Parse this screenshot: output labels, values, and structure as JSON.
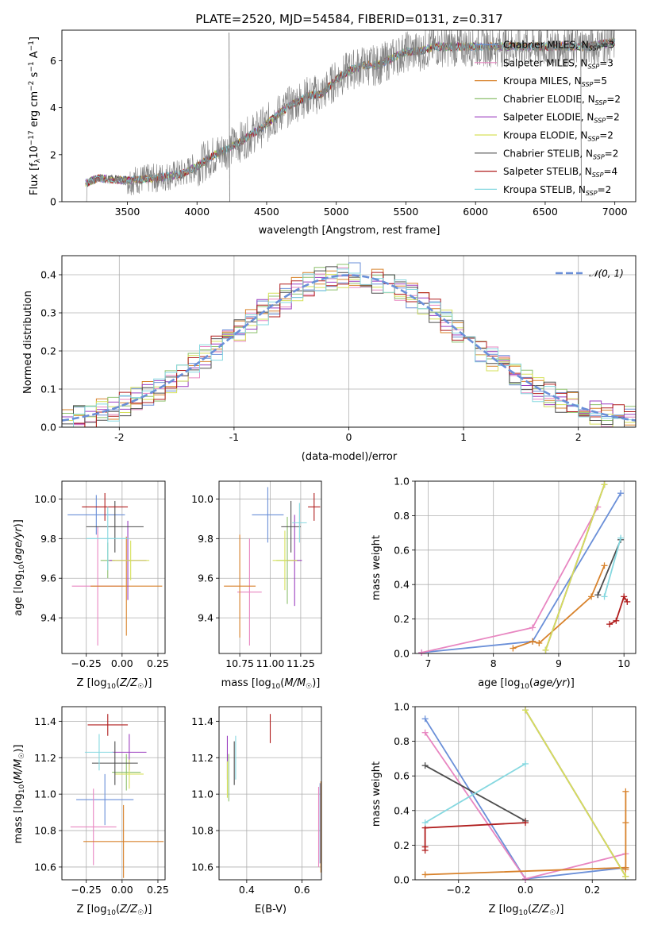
{
  "figure_title": "PLATE=2520, MJD=54584, FIBERID=0131, z=0.317",
  "colors": {
    "Chabrier MILES": "#6a8fd8",
    "Salpeter MILES": "#e886c1",
    "Kroupa MILES": "#d8822b",
    "Chabrier ELODIE": "#8dc06d",
    "Salpeter ELODIE": "#9b3fbf",
    "Kroupa ELODIE": "#d6e05a",
    "Chabrier STELIB": "#4d4d4d",
    "Salpeter STELIB": "#b01d1d",
    "Kroupa STELIB": "#86d8e0",
    "data": "#808080",
    "normal": "#6a8fd8",
    "grid": "#b0b0b0"
  },
  "chart_data": [
    {
      "id": "spectrum",
      "type": "line",
      "title": "PLATE=2520, MJD=54584, FIBERID=0131, z=0.317",
      "xlabel": "wavelength [Angstrom, rest frame]",
      "ylabel": "Flux [f_λ 10^-17 erg cm^-2 s^-1 A^-1]",
      "xlim": [
        3030,
        7150
      ],
      "ylim": [
        0,
        7.3
      ],
      "xticks": [
        3500,
        4000,
        4500,
        5000,
        5500,
        6000,
        6500,
        7000
      ],
      "yticks": [
        0,
        2,
        4,
        6
      ],
      "grid": false,
      "legend_position": "top-right",
      "continuum_points": [
        [
          3200,
          0.8
        ],
        [
          3300,
          1.0
        ],
        [
          3500,
          0.9
        ],
        [
          3700,
          1.0
        ],
        [
          3900,
          1.2
        ],
        [
          4000,
          1.5
        ],
        [
          4100,
          1.9
        ],
        [
          4200,
          2.2
        ],
        [
          4300,
          2.5
        ],
        [
          4400,
          2.9
        ],
        [
          4500,
          3.3
        ],
        [
          4600,
          3.8
        ],
        [
          4700,
          4.2
        ],
        [
          4800,
          4.5
        ],
        [
          4900,
          4.6
        ],
        [
          5000,
          5.2
        ],
        [
          5100,
          5.6
        ],
        [
          5200,
          5.8
        ],
        [
          5300,
          5.8
        ],
        [
          5400,
          6.1
        ],
        [
          5500,
          6.4
        ],
        [
          5600,
          6.4
        ],
        [
          5700,
          6.6
        ],
        [
          5800,
          6.6
        ],
        [
          5900,
          6.6
        ],
        [
          6000,
          6.6
        ],
        [
          6200,
          6.6
        ],
        [
          6400,
          6.6
        ],
        [
          6600,
          6.6
        ],
        [
          6800,
          6.6
        ],
        [
          7000,
          6.8
        ]
      ],
      "spikes": [
        [
          4230,
          7.2
        ],
        [
          4235,
          0
        ],
        [
          6760,
          0
        ],
        [
          6755,
          7.2
        ]
      ],
      "series": [
        {
          "name": "Chabrier MILES, N_SSP=3"
        },
        {
          "name": "Salpeter MILES, N_SSP=3"
        },
        {
          "name": "Kroupa MILES, N_SSP=5"
        },
        {
          "name": "Chabrier ELODIE, N_SSP=2"
        },
        {
          "name": "Salpeter ELODIE, N_SSP=2"
        },
        {
          "name": "Kroupa ELODIE, N_SSP=2"
        },
        {
          "name": "Chabrier STELIB, N_SSP=2"
        },
        {
          "name": "Salpeter STELIB, N_SSP=4"
        },
        {
          "name": "Kroupa STELIB, N_SSP=2"
        }
      ]
    },
    {
      "id": "residuals",
      "type": "line",
      "xlabel": "(data-model)/error",
      "ylabel": "Normed distribution",
      "xlim": [
        -2.5,
        2.5
      ],
      "ylim": [
        0,
        0.45
      ],
      "xticks": [
        -2,
        -1,
        0,
        1,
        2
      ],
      "yticks": [
        0.0,
        0.1,
        0.2,
        0.3,
        0.4
      ],
      "grid": true,
      "legend_position": "top-right",
      "normal_label": "N(0,1)",
      "bin_width": 0.1
    },
    {
      "id": "age_vs_Z",
      "type": "scatter",
      "xlabel": "Z [log10(Z/Z☉)]",
      "ylabel": "age [log10(age/yr)]",
      "xlim": [
        -0.42,
        0.3
      ],
      "ylim": [
        9.22,
        10.09
      ],
      "xticks": [
        -0.25,
        0.0,
        0.25
      ],
      "xticklabels": [
        "−0.25",
        "0.00",
        "0.25"
      ],
      "yticks": [
        9.4,
        9.6,
        9.8,
        10.0
      ],
      "grid": true,
      "points": [
        {
          "series": "Chabrier MILES",
          "x": -0.18,
          "xerr": 0.2,
          "y": 9.92,
          "yerr": 0.1
        },
        {
          "series": "Salpeter MILES",
          "x": -0.17,
          "xerr": 0.18,
          "y": 9.56,
          "yerr": 0.3
        },
        {
          "series": "Kroupa MILES",
          "x": 0.03,
          "xerr": 0.25,
          "y": 9.56,
          "yerr": 0.25
        },
        {
          "series": "Chabrier ELODIE",
          "x": -0.1,
          "xerr": 0.05,
          "y": 9.69,
          "yerr": 0.09
        },
        {
          "series": "Salpeter ELODIE",
          "x": 0.04,
          "xerr": 0.13,
          "y": 9.69,
          "yerr": 0.2
        },
        {
          "series": "Kroupa ELODIE",
          "x": 0.06,
          "xerr": 0.13,
          "y": 9.69,
          "yerr": 0.1
        },
        {
          "series": "Chabrier STELIB",
          "x": -0.05,
          "xerr": 0.2,
          "y": 9.86,
          "yerr": 0.13
        },
        {
          "series": "Salpeter STELIB",
          "x": -0.12,
          "xerr": 0.16,
          "y": 9.96,
          "yerr": 0.07
        },
        {
          "series": "Kroupa STELIB",
          "x": -0.1,
          "xerr": 0.15,
          "y": 9.8,
          "yerr": 0.16
        }
      ]
    },
    {
      "id": "age_vs_mass",
      "type": "scatter",
      "xlabel": "mass [log10(M/M☉)]",
      "xlim": [
        10.58,
        11.42
      ],
      "ylim": [
        9.22,
        10.09
      ],
      "xticks": [
        10.75,
        11.0,
        11.25
      ],
      "xticklabels": [
        "10.75",
        "11.00",
        "11.25"
      ],
      "yticks": [
        9.4,
        9.6,
        9.8,
        10.0
      ],
      "grid": true,
      "points": [
        {
          "series": "Chabrier MILES",
          "x": 10.98,
          "xerr": 0.13,
          "y": 9.92,
          "yerr": 0.14
        },
        {
          "series": "Salpeter MILES",
          "x": 10.83,
          "xerr": 0.1,
          "y": 9.53,
          "yerr": 0.27
        },
        {
          "series": "Kroupa MILES",
          "x": 10.75,
          "xerr": 0.13,
          "y": 9.56,
          "yerr": 0.26
        },
        {
          "series": "Chabrier ELODIE",
          "x": 11.14,
          "xerr": 0.09,
          "y": 9.69,
          "yerr": 0.22
        },
        {
          "series": "Salpeter ELODIE",
          "x": 11.2,
          "xerr": 0.06,
          "y": 9.69,
          "yerr": 0.23
        },
        {
          "series": "Kroupa ELODIE",
          "x": 11.12,
          "xerr": 0.1,
          "y": 9.69,
          "yerr": 0.15
        },
        {
          "series": "Chabrier STELIB",
          "x": 11.17,
          "xerr": 0.08,
          "y": 9.86,
          "yerr": 0.13
        },
        {
          "series": "Salpeter STELIB",
          "x": 11.36,
          "xerr": 0.05,
          "y": 9.96,
          "yerr": 0.07
        },
        {
          "series": "Kroupa STELIB",
          "x": 11.24,
          "xerr": 0.06,
          "y": 9.88,
          "yerr": 0.1
        }
      ]
    },
    {
      "id": "mw_vs_age",
      "type": "line",
      "xlabel": "age [log10(age/yr)]",
      "ylabel": "mass weight",
      "xlim": [
        6.8,
        10.18
      ],
      "ylim": [
        0,
        1.0
      ],
      "xticks": [
        7,
        8,
        9,
        10
      ],
      "yticks": [
        0.0,
        0.2,
        0.4,
        0.6,
        0.8,
        1.0
      ],
      "grid": true,
      "series": [
        {
          "series": "Chabrier MILES",
          "x": [
            6.9,
            8.6,
            9.95
          ],
          "y": [
            0.005,
            0.07,
            0.93
          ]
        },
        {
          "series": "Salpeter MILES",
          "x": [
            6.9,
            8.6,
            9.6
          ],
          "y": [
            0.005,
            0.15,
            0.85
          ]
        },
        {
          "series": "Kroupa MILES",
          "x": [
            8.3,
            8.6,
            8.7,
            9.5,
            9.7
          ],
          "y": [
            0.03,
            0.07,
            0.06,
            0.33,
            0.51
          ]
        },
        {
          "series": "Chabrier ELODIE",
          "x": [
            8.8,
            9.7
          ],
          "y": [
            0.02,
            0.98
          ]
        },
        {
          "series": "Salpeter ELODIE",
          "x": [
            8.8,
            9.7
          ],
          "y": [
            0.02,
            0.98
          ]
        },
        {
          "series": "Kroupa ELODIE",
          "x": [
            8.8,
            9.7
          ],
          "y": [
            0.02,
            0.98
          ]
        },
        {
          "series": "Chabrier STELIB",
          "x": [
            9.6,
            9.95
          ],
          "y": [
            0.34,
            0.66
          ]
        },
        {
          "series": "Salpeter STELIB",
          "x": [
            9.78,
            9.88,
            10.0,
            10.05
          ],
          "y": [
            0.17,
            0.19,
            0.33,
            0.3
          ]
        },
        {
          "series": "Kroupa STELIB",
          "x": [
            9.7,
            9.95
          ],
          "y": [
            0.33,
            0.67
          ]
        }
      ]
    },
    {
      "id": "mass_vs_Z",
      "type": "scatter",
      "xlabel": "Z [log10(Z/Z☉)]",
      "ylabel": "mass [log10(M/M☉)]",
      "xlim": [
        -0.42,
        0.3
      ],
      "ylim": [
        10.53,
        11.48
      ],
      "xticks": [
        -0.25,
        0.0,
        0.25
      ],
      "xticklabels": [
        "−0.25",
        "0.00",
        "0.25"
      ],
      "yticks": [
        10.6,
        10.8,
        11.0,
        11.2,
        11.4
      ],
      "grid": true,
      "points": [
        {
          "series": "Chabrier MILES",
          "x": -0.12,
          "xerr": 0.2,
          "y": 10.97,
          "yerr": 0.14
        },
        {
          "series": "Salpeter MILES",
          "x": -0.2,
          "xerr": 0.16,
          "y": 10.82,
          "yerr": 0.21
        },
        {
          "series": "Kroupa MILES",
          "x": 0.01,
          "xerr": 0.28,
          "y": 10.74,
          "yerr": 0.2
        },
        {
          "series": "Chabrier ELODIE",
          "x": 0.03,
          "xerr": 0.1,
          "y": 11.12,
          "yerr": 0.1
        },
        {
          "series": "Salpeter ELODIE",
          "x": 0.05,
          "xerr": 0.12,
          "y": 11.23,
          "yerr": 0.1
        },
        {
          "series": "Kroupa ELODIE",
          "x": 0.05,
          "xerr": 0.1,
          "y": 11.11,
          "yerr": 0.08
        },
        {
          "series": "Chabrier STELIB",
          "x": -0.05,
          "xerr": 0.16,
          "y": 11.17,
          "yerr": 0.12
        },
        {
          "series": "Salpeter STELIB",
          "x": -0.1,
          "xerr": 0.14,
          "y": 11.38,
          "yerr": 0.06
        },
        {
          "series": "Kroupa STELIB",
          "x": -0.16,
          "xerr": 0.1,
          "y": 11.23,
          "yerr": 0.1
        }
      ]
    },
    {
      "id": "mass_vs_ebv",
      "type": "scatter",
      "xlabel": "E(B-V)",
      "xlim": [
        0.3,
        0.67
      ],
      "ylim": [
        10.53,
        11.48
      ],
      "xticks": [
        0.4,
        0.6
      ],
      "yticks": [
        10.6,
        10.8,
        11.0,
        11.2,
        11.4
      ],
      "grid": true,
      "points": [
        {
          "series": "Chabrier MILES",
          "x": 0.665,
          "y": 10.84,
          "yerr": 0.22
        },
        {
          "series": "Salpeter MILES",
          "x": 0.66,
          "y": 10.82,
          "yerr": 0.22
        },
        {
          "series": "Kroupa MILES",
          "x": 0.668,
          "y": 10.82,
          "yerr": 0.25
        },
        {
          "series": "Chabrier ELODIE",
          "x": 0.335,
          "y": 11.09,
          "yerr": 0.13
        },
        {
          "series": "Salpeter ELODIE",
          "x": 0.33,
          "y": 11.2,
          "yerr": 0.12
        },
        {
          "series": "Kroupa ELODIE",
          "x": 0.33,
          "y": 11.08,
          "yerr": 0.1
        },
        {
          "series": "Chabrier STELIB",
          "x": 0.355,
          "y": 11.17,
          "yerr": 0.12
        },
        {
          "series": "Salpeter STELIB",
          "x": 0.485,
          "y": 11.36,
          "yerr": 0.08
        },
        {
          "series": "Kroupa STELIB",
          "x": 0.36,
          "y": 11.2,
          "yerr": 0.12
        }
      ]
    },
    {
      "id": "mw_vs_Z",
      "type": "line",
      "xlabel": "Z [log10(Z/Z☉)]",
      "ylabel": "mass weight",
      "xlim": [
        -0.33,
        0.33
      ],
      "ylim": [
        0,
        1.0
      ],
      "xticks": [
        -0.2,
        0.0,
        0.2
      ],
      "xticklabels": [
        "−0.2",
        "0.0",
        "0.2"
      ],
      "yticks": [
        0.0,
        0.2,
        0.4,
        0.6,
        0.8,
        1.0
      ],
      "grid": true,
      "series": [
        {
          "series": "Chabrier MILES",
          "x": [
            -0.3,
            0.0,
            0.3
          ],
          "y": [
            0.93,
            0.005,
            0.07
          ]
        },
        {
          "series": "Salpeter MILES",
          "x": [
            -0.3,
            0.0,
            0.3
          ],
          "y": [
            0.85,
            0.005,
            0.15
          ]
        },
        {
          "series": "Kroupa MILES",
          "x": [
            -0.3,
            0.3,
            0.3,
            0.3,
            0.3
          ],
          "y": [
            0.03,
            0.07,
            0.06,
            0.33,
            0.51
          ]
        },
        {
          "series": "Chabrier ELODIE",
          "x": [
            0.0,
            0.3
          ],
          "y": [
            0.98,
            0.02
          ]
        },
        {
          "series": "Salpeter ELODIE",
          "x": [
            0.0,
            0.3
          ],
          "y": [
            0.98,
            0.02
          ]
        },
        {
          "series": "Kroupa ELODIE",
          "x": [
            0.0,
            0.3
          ],
          "y": [
            0.98,
            0.02
          ]
        },
        {
          "series": "Chabrier STELIB",
          "x": [
            -0.3,
            0.0
          ],
          "y": [
            0.66,
            0.34
          ]
        },
        {
          "series": "Salpeter STELIB",
          "x": [
            -0.3,
            -0.3,
            -0.3,
            0.0
          ],
          "y": [
            0.17,
            0.19,
            0.3,
            0.33
          ]
        },
        {
          "series": "Kroupa STELIB",
          "x": [
            -0.3,
            0.0
          ],
          "y": [
            0.33,
            0.67
          ]
        }
      ]
    }
  ]
}
